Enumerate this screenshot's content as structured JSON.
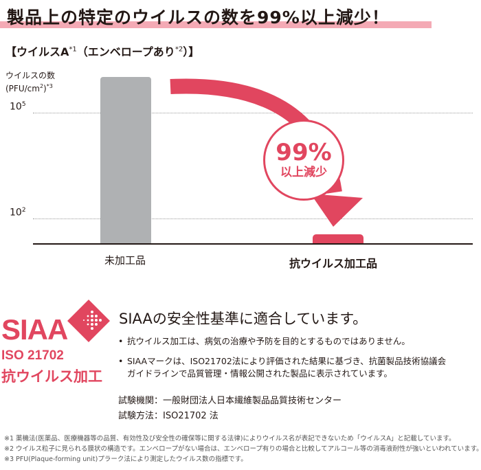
{
  "headline": "製品上の特定のウイルスの数を99%以上減少！",
  "subtitle": {
    "main": "【ウイルスA",
    "sup1": "*1",
    "paren": "（エンベロープあり",
    "sup2": "*2",
    "end": "）】"
  },
  "chart_data": {
    "type": "bar",
    "ylabel": "ウイルスの数",
    "ylabel_unit": "(PFU/cm",
    "ylabel_unit_sup": "2",
    "ylabel_unit_end": ")",
    "ylabel_note": "*3",
    "yscale": "log",
    "ticks": [
      {
        "base": "10",
        "exp": "5",
        "value": 100000
      },
      {
        "base": "10",
        "exp": "2",
        "value": 100
      }
    ],
    "ylim": [
      20,
      10000000
    ],
    "categories": [
      "未加工品",
      "抗ウイルス加工品"
    ],
    "values": [
      1000000,
      35
    ],
    "annotation": {
      "percent": "99%",
      "text": "以上減少"
    }
  },
  "colors": {
    "accent": "#e1465f",
    "bar_untreated": "#afb1b3",
    "highlight": "#f4aab5"
  },
  "siaa": {
    "logo": "SIAA",
    "iso": "ISO 21702",
    "label": "抗ウイルス加工",
    "heading": "SIAAの安全性基準に適合しています。",
    "bullets": [
      "抗ウイルス加工は、病気の治療や予防を目的とするものではありません。",
      "SIAAマークは、ISO21702法により評価された結果に基づき、抗菌製品技術協議会",
      "ガイドラインで品質管理・情報公開された製品に表示されています。"
    ],
    "testing_org": "試験機関：一般財団法人日本繊維製品品質技術センター",
    "testing_method": "試験方法：ISO21702 法"
  },
  "footnotes": [
    "※1 薬機法(医薬品、医療機器等の品質、有効性及び安全性の確保等に関する法律)によりウイルス名が表記できないため「ウイルスA」と記載しています。",
    "※2 ウイルス粒子に見られる膜状の構造です。エンベロープがない場合は、エンベロープ有りの場合と比較してアルコール等の消毒液耐性が強いといわれています。",
    "※3 PFU(Plaque-forming unit)プラーク法により測定したウイルス数の指標です。"
  ]
}
